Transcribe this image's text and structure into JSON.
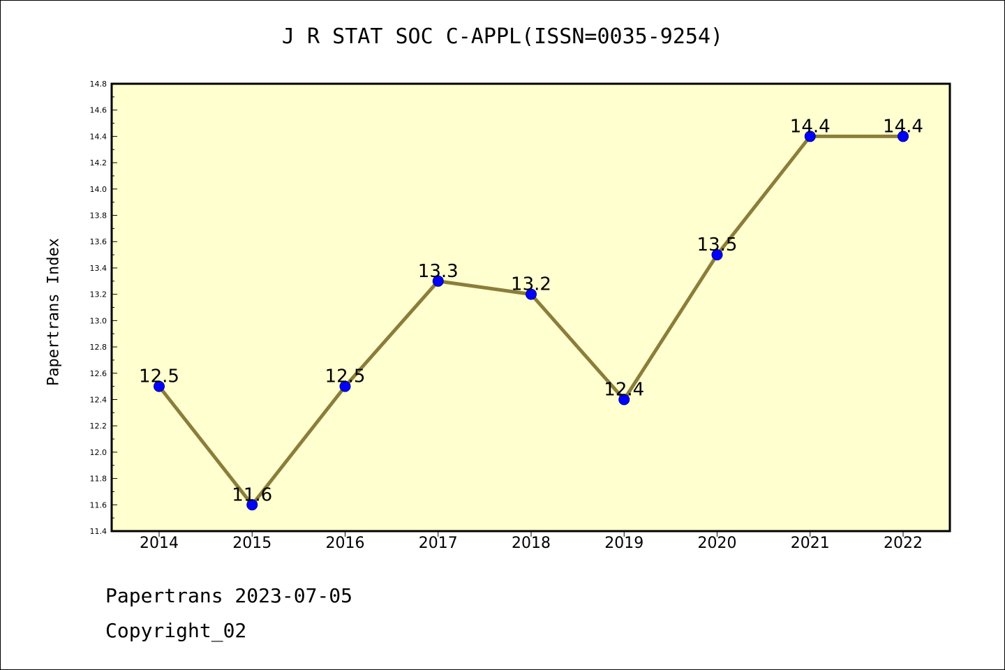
{
  "chart_data": {
    "type": "line",
    "title": "J R STAT SOC C-APPL(ISSN=0035-9254)",
    "xlabel": "",
    "ylabel": "Papertrans Index",
    "categories": [
      "2014",
      "2015",
      "2016",
      "2017",
      "2018",
      "2019",
      "2020",
      "2021",
      "2022"
    ],
    "series": [
      {
        "values": [
          12.5,
          11.6,
          12.5,
          13.3,
          13.2,
          12.4,
          13.5,
          14.4,
          14.4
        ]
      }
    ],
    "data_labels": [
      "12.5",
      "11.6",
      "12.5",
      "13.3",
      "13.2",
      "12.4",
      "13.5",
      "14.4",
      "14.4"
    ],
    "ylim": [
      11.4,
      14.8
    ],
    "yticks": [
      "11.4",
      "11.6",
      "11.8",
      "12.0",
      "12.2",
      "12.4",
      "12.6",
      "12.8",
      "13.0",
      "13.2",
      "13.4",
      "13.6",
      "13.8",
      "14.0",
      "14.2",
      "14.4",
      "14.6",
      "14.8"
    ],
    "grid": false,
    "legend": "none",
    "colors": {
      "plot_background": "#ffffd0",
      "line": "#8b7d3a",
      "marker": "#0000ff",
      "marker_edge": "#000080"
    }
  },
  "footer": {
    "line1": "Papertrans 2023-07-05",
    "line2": "Copyright_02"
  }
}
